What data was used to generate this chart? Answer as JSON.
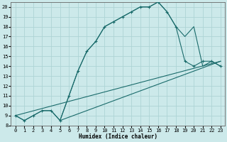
{
  "background_color": "#cce9ea",
  "grid_color": "#add4d5",
  "line_color": "#1a6b6b",
  "xlabel": "Humidex (Indice chaleur)",
  "xlim": [
    -0.5,
    23.5
  ],
  "ylim": [
    8,
    20.5
  ],
  "xticks": [
    0,
    1,
    2,
    3,
    4,
    5,
    6,
    7,
    8,
    9,
    10,
    11,
    12,
    13,
    14,
    15,
    16,
    17,
    18,
    19,
    20,
    21,
    22,
    23
  ],
  "yticks": [
    8,
    9,
    10,
    11,
    12,
    13,
    14,
    15,
    16,
    17,
    18,
    19,
    20
  ],
  "curve1_x": [
    0,
    1,
    2,
    3,
    4,
    5,
    6,
    7,
    8,
    9,
    10,
    11,
    12,
    13,
    14,
    15,
    16,
    17,
    18,
    19,
    20,
    21,
    22,
    23
  ],
  "curve1_y": [
    9,
    8.5,
    9,
    9.5,
    9.5,
    8.5,
    11,
    13.5,
    15.5,
    16.5,
    18,
    18.5,
    19,
    19.5,
    20,
    20,
    20.5,
    19.5,
    18,
    14.5,
    14,
    14.5,
    14.5,
    14
  ],
  "curve2_x": [
    0,
    1,
    2,
    3,
    4,
    5,
    6,
    7,
    8,
    9,
    10,
    11,
    12,
    13,
    14,
    15,
    16,
    17,
    18,
    19,
    20,
    21,
    22,
    23
  ],
  "curve2_y": [
    9,
    8.5,
    9,
    9.5,
    9.5,
    8.5,
    11,
    13.5,
    15.5,
    16.5,
    18,
    18.5,
    19,
    19.5,
    20,
    20,
    20.5,
    19.5,
    18,
    17,
    18,
    14,
    14.5,
    14
  ],
  "line3_x": [
    0,
    23
  ],
  "line3_y": [
    9,
    14.5
  ],
  "line4_x": [
    5,
    23
  ],
  "line4_y": [
    8.5,
    14.5
  ]
}
